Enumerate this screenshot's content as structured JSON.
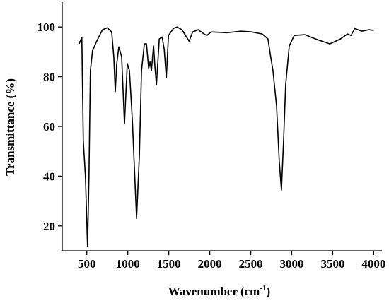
{
  "chart_data": {
    "type": "line",
    "xlabel": {
      "text": "Wavenumber (cm",
      "sup": "-1",
      "end": ")"
    },
    "ylabel": "Transmittance (%)",
    "xlim": [
      200,
      4100
    ],
    "xticks": [
      500,
      1000,
      1500,
      2000,
      2500,
      3000,
      3500,
      4000
    ],
    "ylim": [
      10,
      110
    ],
    "yticks": [
      20,
      40,
      60,
      80,
      100
    ],
    "series": [
      {
        "color": "#000000",
        "x": [
          405,
          431,
          439,
          457,
          483,
          509,
          526,
          543,
          569,
          613,
          690,
          751,
          803,
          829,
          847,
          864,
          890,
          925,
          959,
          994,
          1020,
          1055,
          1107,
          1141,
          1167,
          1202,
          1228,
          1254,
          1271,
          1288,
          1314,
          1331,
          1349,
          1384,
          1418,
          1444,
          1470,
          1496,
          1557,
          1600,
          1661,
          1704,
          1748,
          1791,
          1860,
          1930,
          1964,
          2016,
          2207,
          2380,
          2510,
          2640,
          2710,
          2736,
          2770,
          2814,
          2848,
          2874,
          2900,
          2926,
          2970,
          3030,
          3160,
          3290,
          3464,
          3594,
          3680,
          3724,
          3767,
          3854,
          3940,
          4000
        ],
        "values": [
          93.2,
          95.2,
          95.8,
          54,
          40,
          11.8,
          40,
          82.5,
          90.4,
          93.8,
          98.9,
          99.7,
          98,
          88,
          74,
          85,
          92,
          88,
          61,
          85.3,
          82.5,
          62.7,
          23,
          48.5,
          82.5,
          93.2,
          93.2,
          83.3,
          85.9,
          82.5,
          92.4,
          83.9,
          76.8,
          95.2,
          96,
          91,
          79.6,
          96.6,
          99.4,
          100,
          98.9,
          96.6,
          94.3,
          98,
          98.9,
          97.2,
          96.6,
          98,
          97.7,
          98.3,
          98,
          97.2,
          95.2,
          89.5,
          82.5,
          68.3,
          45.7,
          34.4,
          54,
          76.8,
          92.4,
          96.6,
          96.9,
          95.2,
          93.2,
          95.2,
          97.2,
          96.6,
          99.4,
          98.3,
          98.9,
          98.6
        ]
      }
    ]
  }
}
